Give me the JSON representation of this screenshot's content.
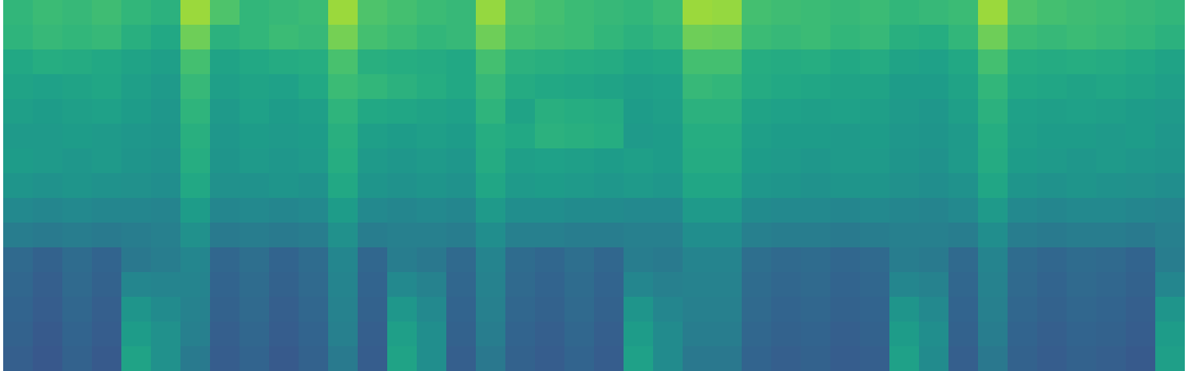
{
  "chart_data": {
    "type": "heatmap",
    "tick_labels": false,
    "zlim": [
      0,
      100
    ],
    "cells": [
      [
        66,
        68,
        67,
        69,
        66,
        64,
        85,
        72,
        66,
        67,
        68,
        85,
        72,
        70,
        68,
        67,
        84,
        72,
        70,
        68,
        67,
        66,
        68,
        85,
        84,
        70,
        69,
        68,
        67,
        68,
        66,
        67,
        68,
        85,
        72,
        70,
        69,
        68,
        67,
        66
      ],
      [
        65,
        67,
        66,
        67,
        63,
        60,
        78,
        64,
        66,
        68,
        67,
        79,
        70,
        68,
        66,
        67,
        78,
        70,
        69,
        68,
        66,
        64,
        66,
        78,
        77,
        68,
        67,
        68,
        66,
        67,
        63,
        62,
        66,
        78,
        68,
        67,
        68,
        67,
        66,
        64
      ],
      [
        60,
        62,
        61,
        60,
        58,
        56,
        70,
        58,
        60,
        61,
        62,
        71,
        63,
        62,
        61,
        60,
        70,
        64,
        63,
        62,
        61,
        59,
        60,
        70,
        70,
        62,
        61,
        62,
        60,
        61,
        58,
        57,
        60,
        70,
        62,
        61,
        62,
        61,
        60,
        58
      ],
      [
        58,
        57,
        58,
        59,
        56,
        54,
        67,
        56,
        58,
        57,
        60,
        68,
        66,
        64,
        62,
        60,
        67,
        61,
        60,
        59,
        58,
        56,
        57,
        67,
        66,
        61,
        60,
        59,
        58,
        58,
        55,
        55,
        58,
        66,
        60,
        59,
        58,
        59,
        58,
        56
      ],
      [
        56,
        55,
        56,
        57,
        55,
        53,
        65,
        54,
        57,
        55,
        56,
        65,
        60,
        59,
        58,
        57,
        65,
        58,
        63,
        62,
        61,
        55,
        56,
        64,
        64,
        58,
        57,
        56,
        57,
        56,
        54,
        53,
        56,
        64,
        57,
        56,
        57,
        56,
        55,
        54
      ],
      [
        54,
        54,
        55,
        54,
        53,
        52,
        63,
        53,
        55,
        54,
        55,
        63,
        56,
        55,
        56,
        55,
        62,
        60,
        64,
        63,
        62,
        54,
        55,
        62,
        62,
        56,
        55,
        55,
        54,
        55,
        53,
        52,
        54,
        62,
        56,
        55,
        55,
        54,
        55,
        53
      ],
      [
        55,
        54,
        53,
        54,
        52,
        51,
        62,
        52,
        54,
        53,
        54,
        62,
        54,
        53,
        54,
        53,
        61,
        56,
        57,
        56,
        55,
        56,
        55,
        61,
        61,
        55,
        54,
        53,
        54,
        54,
        52,
        51,
        54,
        61,
        55,
        54,
        53,
        54,
        53,
        52
      ],
      [
        52,
        51,
        52,
        51,
        50,
        49,
        60,
        50,
        51,
        52,
        51,
        60,
        52,
        51,
        52,
        51,
        59,
        54,
        55,
        54,
        53,
        54,
        53,
        59,
        59,
        53,
        52,
        51,
        52,
        52,
        50,
        49,
        51,
        59,
        52,
        51,
        52,
        51,
        50,
        49
      ],
      [
        47,
        46,
        47,
        46,
        46,
        45,
        55,
        46,
        47,
        46,
        47,
        55,
        47,
        46,
        47,
        46,
        54,
        49,
        49,
        48,
        48,
        47,
        47,
        54,
        54,
        48,
        47,
        47,
        46,
        47,
        46,
        45,
        47,
        54,
        47,
        46,
        47,
        47,
        46,
        45
      ],
      [
        42,
        41,
        42,
        41,
        42,
        43,
        50,
        41,
        42,
        41,
        42,
        50,
        42,
        43,
        43,
        42,
        49,
        43,
        43,
        42,
        42,
        43,
        43,
        49,
        49,
        43,
        42,
        42,
        41,
        42,
        43,
        43,
        42,
        49,
        42,
        41,
        42,
        42,
        41,
        43
      ],
      [
        34,
        31,
        35,
        32,
        40,
        42,
        46,
        33,
        36,
        32,
        35,
        46,
        33,
        42,
        40,
        34,
        45,
        35,
        33,
        36,
        33,
        42,
        41,
        45,
        45,
        36,
        34,
        35,
        33,
        34,
        42,
        41,
        34,
        45,
        35,
        33,
        35,
        34,
        32,
        42
      ],
      [
        33,
        30,
        34,
        31,
        46,
        45,
        45,
        32,
        35,
        31,
        34,
        45,
        32,
        47,
        44,
        33,
        44,
        34,
        32,
        35,
        32,
        46,
        43,
        44,
        44,
        35,
        33,
        34,
        32,
        33,
        46,
        44,
        33,
        44,
        34,
        32,
        34,
        33,
        31,
        46
      ],
      [
        32,
        29,
        33,
        30,
        52,
        48,
        44,
        31,
        34,
        30,
        33,
        44,
        31,
        53,
        47,
        32,
        43,
        33,
        31,
        34,
        31,
        52,
        46,
        43,
        43,
        34,
        32,
        33,
        31,
        32,
        52,
        47,
        32,
        43,
        33,
        31,
        33,
        32,
        30,
        52
      ],
      [
        31,
        28,
        32,
        29,
        55,
        50,
        43,
        30,
        33,
        29,
        32,
        43,
        30,
        56,
        49,
        31,
        42,
        32,
        30,
        33,
        30,
        55,
        48,
        42,
        42,
        33,
        31,
        32,
        30,
        31,
        55,
        49,
        31,
        42,
        32,
        30,
        32,
        31,
        29,
        55
      ],
      [
        30,
        27,
        31,
        28,
        58,
        50,
        41,
        29,
        32,
        28,
        31,
        41,
        29,
        58,
        49,
        30,
        40,
        31,
        29,
        32,
        29,
        57,
        48,
        40,
        40,
        32,
        30,
        31,
        29,
        30,
        57,
        48,
        30,
        40,
        31,
        29,
        31,
        30,
        28,
        56
      ]
    ]
  }
}
